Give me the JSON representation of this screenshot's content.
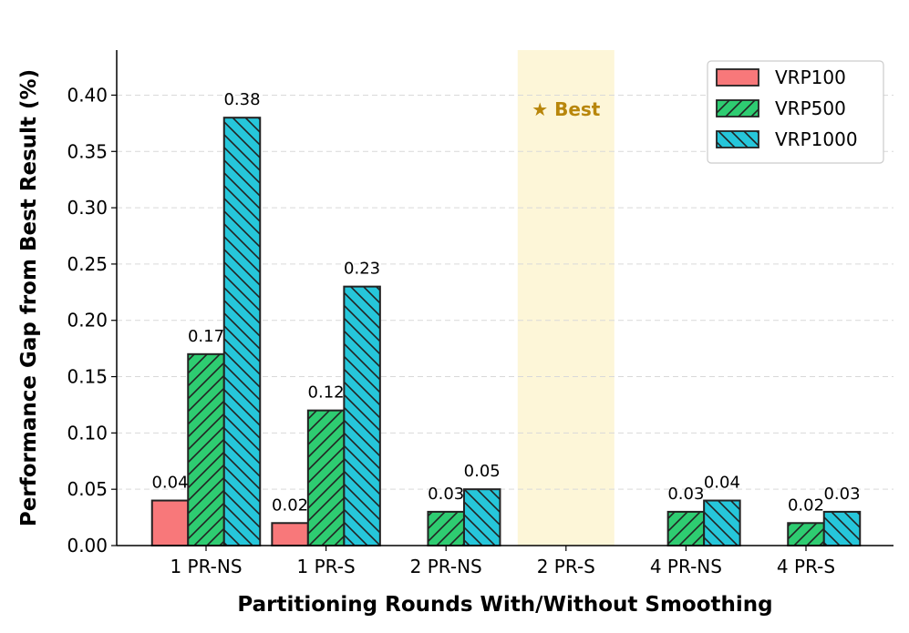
{
  "chart_data": {
    "type": "bar",
    "xlabel": "Partitioning Rounds With/Without Smoothing",
    "ylabel": "Performance Gap from Best Result (%)",
    "categories": [
      "1 PR-NS",
      "1 PR-S",
      "2 PR-NS",
      "2 PR-S",
      "4 PR-NS",
      "4 PR-S"
    ],
    "series": [
      {
        "name": "VRP100",
        "values": [
          0.04,
          0.02,
          0.0,
          0.0,
          0.0,
          0.0
        ],
        "labels": [
          "0.04",
          "0.02",
          "",
          "",
          "",
          ""
        ],
        "color": "#f8787a",
        "hatch": "none"
      },
      {
        "name": "VRP500",
        "values": [
          0.17,
          0.12,
          0.03,
          0.0,
          0.03,
          0.02
        ],
        "labels": [
          "0.17",
          "0.12",
          "0.03",
          "",
          "0.03",
          "0.02"
        ],
        "color": "#2ecc71",
        "hatch": "forward"
      },
      {
        "name": "VRP1000",
        "values": [
          0.38,
          0.23,
          0.05,
          0.0,
          0.04,
          0.03
        ],
        "labels": [
          "0.38",
          "0.23",
          "0.05",
          "",
          "0.04",
          "0.03"
        ],
        "color": "#26c6da",
        "hatch": "back"
      }
    ],
    "ylim": [
      0,
      0.44
    ],
    "yticks": [
      "0.00",
      "0.05",
      "0.10",
      "0.15",
      "0.20",
      "0.25",
      "0.30",
      "0.35",
      "0.40"
    ],
    "ytick_values": [
      0,
      0.05,
      0.1,
      0.15,
      0.2,
      0.25,
      0.3,
      0.35,
      0.4
    ],
    "grid": "y dashed",
    "legend_position": "top-right",
    "highlight": {
      "category": "2 PR-S",
      "label": "★ Best",
      "color": "#fdf6d8",
      "text_color": "#b8860b"
    }
  }
}
